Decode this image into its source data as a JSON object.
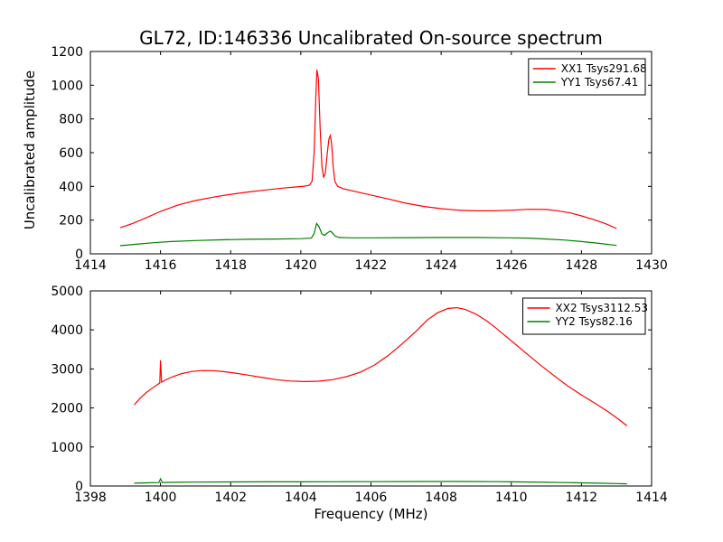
{
  "figure": {
    "background": "#ffffff",
    "text_color": "#000000"
  },
  "chart_data": [
    {
      "subplot": "top",
      "type": "line",
      "title": "GL72, ID:146336 Uncalibrated On-source spectrum",
      "xlabel": "",
      "ylabel": "Uncalibrated amplitude",
      "xlim": [
        1414,
        1430
      ],
      "ylim": [
        0,
        1200
      ],
      "xticks": [
        1414,
        1416,
        1418,
        1420,
        1422,
        1424,
        1426,
        1428,
        1430
      ],
      "yticks": [
        0,
        200,
        400,
        600,
        800,
        1000,
        1200
      ],
      "grid": false,
      "legend_position": "upper right",
      "series": [
        {
          "name": "XX1 Tsys291.68",
          "color": "#ff0000",
          "points": [
            [
              1414.85,
              155
            ],
            [
              1415.2,
              180
            ],
            [
              1415.6,
              215
            ],
            [
              1416,
              252
            ],
            [
              1416.5,
              290
            ],
            [
              1417,
              316
            ],
            [
              1417.5,
              336
            ],
            [
              1418,
              353
            ],
            [
              1418.5,
              367
            ],
            [
              1419,
              379
            ],
            [
              1419.5,
              390
            ],
            [
              1419.8,
              396
            ],
            [
              1420.1,
              401
            ],
            [
              1420.25,
              407
            ],
            [
              1420.32,
              430
            ],
            [
              1420.38,
              600
            ],
            [
              1420.43,
              950
            ],
            [
              1420.46,
              1092
            ],
            [
              1420.5,
              1040
            ],
            [
              1420.55,
              750
            ],
            [
              1420.6,
              520
            ],
            [
              1420.65,
              452
            ],
            [
              1420.7,
              480
            ],
            [
              1420.75,
              590
            ],
            [
              1420.8,
              680
            ],
            [
              1420.84,
              702
            ],
            [
              1420.88,
              650
            ],
            [
              1420.92,
              520
            ],
            [
              1420.97,
              430
            ],
            [
              1421.05,
              400
            ],
            [
              1421.2,
              387
            ],
            [
              1421.5,
              372
            ],
            [
              1422,
              349
            ],
            [
              1422.5,
              325
            ],
            [
              1423,
              300
            ],
            [
              1423.5,
              281
            ],
            [
              1424,
              268
            ],
            [
              1424.5,
              259
            ],
            [
              1425,
              255
            ],
            [
              1425.5,
              255
            ],
            [
              1426,
              259
            ],
            [
              1426.5,
              264
            ],
            [
              1427,
              263
            ],
            [
              1427.3,
              256
            ],
            [
              1427.7,
              242
            ],
            [
              1428,
              225
            ],
            [
              1428.4,
              200
            ],
            [
              1428.7,
              178
            ],
            [
              1429,
              150
            ]
          ]
        },
        {
          "name": "YY1 Tsys67.41",
          "color": "#008000",
          "points": [
            [
              1414.85,
              48
            ],
            [
              1415.3,
              57
            ],
            [
              1415.8,
              66
            ],
            [
              1416.3,
              73
            ],
            [
              1417,
              79
            ],
            [
              1417.7,
              83
            ],
            [
              1418.5,
              86
            ],
            [
              1419.3,
              88
            ],
            [
              1420,
              90
            ],
            [
              1420.3,
              93
            ],
            [
              1420.38,
              120
            ],
            [
              1420.45,
              180
            ],
            [
              1420.52,
              160
            ],
            [
              1420.6,
              118
            ],
            [
              1420.68,
              110
            ],
            [
              1420.76,
              125
            ],
            [
              1420.84,
              135
            ],
            [
              1420.9,
              125
            ],
            [
              1420.98,
              105
            ],
            [
              1421.1,
              97
            ],
            [
              1421.5,
              95
            ],
            [
              1422,
              95
            ],
            [
              1423,
              96
            ],
            [
              1424,
              97
            ],
            [
              1425,
              97
            ],
            [
              1426,
              95
            ],
            [
              1426.5,
              93
            ],
            [
              1427,
              88
            ],
            [
              1427.5,
              82
            ],
            [
              1428,
              73
            ],
            [
              1428.5,
              62
            ],
            [
              1429,
              50
            ]
          ]
        }
      ]
    },
    {
      "subplot": "bottom",
      "type": "line",
      "title": "",
      "xlabel": "Frequency (MHz)",
      "ylabel": "",
      "xlim": [
        1398,
        1414
      ],
      "ylim": [
        0,
        5000
      ],
      "xticks": [
        1398,
        1400,
        1402,
        1404,
        1406,
        1408,
        1410,
        1412,
        1414
      ],
      "yticks": [
        0,
        1000,
        2000,
        3000,
        4000,
        5000
      ],
      "grid": false,
      "legend_position": "upper right",
      "series": [
        {
          "name": "XX2 Tsys3112.53",
          "color": "#ff0000",
          "points": [
            [
              1399.25,
              2080
            ],
            [
              1399.4,
              2230
            ],
            [
              1399.6,
              2400
            ],
            [
              1399.8,
              2530
            ],
            [
              1399.93,
              2610
            ],
            [
              1399.98,
              2640
            ],
            [
              1400.0,
              3220
            ],
            [
              1400.03,
              2660
            ],
            [
              1400.15,
              2720
            ],
            [
              1400.35,
              2800
            ],
            [
              1400.6,
              2880
            ],
            [
              1400.9,
              2935
            ],
            [
              1401.2,
              2958
            ],
            [
              1401.5,
              2955
            ],
            [
              1401.8,
              2930
            ],
            [
              1402.1,
              2895
            ],
            [
              1402.5,
              2840
            ],
            [
              1402.9,
              2780
            ],
            [
              1403.3,
              2725
            ],
            [
              1403.7,
              2690
            ],
            [
              1404.1,
              2675
            ],
            [
              1404.5,
              2685
            ],
            [
              1404.9,
              2725
            ],
            [
              1405.3,
              2800
            ],
            [
              1405.7,
              2920
            ],
            [
              1406.1,
              3100
            ],
            [
              1406.5,
              3350
            ],
            [
              1406.9,
              3650
            ],
            [
              1407.3,
              3980
            ],
            [
              1407.6,
              4250
            ],
            [
              1407.9,
              4440
            ],
            [
              1408.2,
              4550
            ],
            [
              1408.45,
              4570
            ],
            [
              1408.7,
              4520
            ],
            [
              1409,
              4400
            ],
            [
              1409.3,
              4230
            ],
            [
              1409.6,
              4020
            ],
            [
              1410,
              3720
            ],
            [
              1410.4,
              3420
            ],
            [
              1410.8,
              3120
            ],
            [
              1411.2,
              2840
            ],
            [
              1411.6,
              2570
            ],
            [
              1412,
              2330
            ],
            [
              1412.4,
              2110
            ],
            [
              1412.8,
              1880
            ],
            [
              1413.1,
              1680
            ],
            [
              1413.3,
              1540
            ]
          ]
        },
        {
          "name": "YY2 Tsys82.16",
          "color": "#008000",
          "points": [
            [
              1399.25,
              72
            ],
            [
              1399.6,
              82
            ],
            [
              1399.95,
              88
            ],
            [
              1400.0,
              185
            ],
            [
              1400.05,
              90
            ],
            [
              1400.5,
              96
            ],
            [
              1401,
              100
            ],
            [
              1402,
              104
            ],
            [
              1403,
              106
            ],
            [
              1404,
              107
            ],
            [
              1405,
              109
            ],
            [
              1406,
              111
            ],
            [
              1407,
              113
            ],
            [
              1408,
              115
            ],
            [
              1408.5,
              115
            ],
            [
              1409,
              113
            ],
            [
              1409.5,
              110
            ],
            [
              1410,
              106
            ],
            [
              1410.5,
              101
            ],
            [
              1411,
              95
            ],
            [
              1411.5,
              88
            ],
            [
              1412,
              80
            ],
            [
              1412.5,
              72
            ],
            [
              1413,
              62
            ],
            [
              1413.3,
              55
            ]
          ]
        }
      ]
    }
  ]
}
